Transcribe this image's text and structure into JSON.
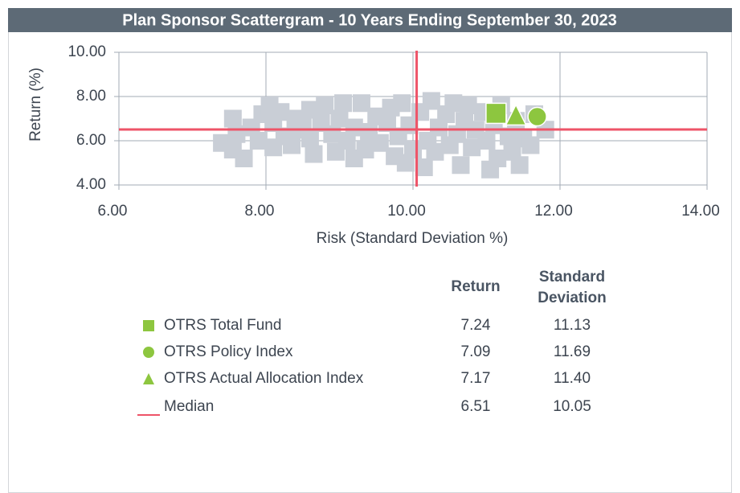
{
  "chart_data": {
    "type": "scatter",
    "title": "Plan Sponsor Scattergram - 10 Years Ending September 30, 2023",
    "x_label": "Risk (Standard Deviation %)",
    "y_label": "Return (%)",
    "xlim": [
      6,
      14
    ],
    "ylim": [
      4,
      10
    ],
    "xticks": [
      {
        "value": 6,
        "label": "6.00"
      },
      {
        "value": 8,
        "label": "8.00"
      },
      {
        "value": 10,
        "label": "10.00"
      },
      {
        "value": 12,
        "label": "12.00"
      },
      {
        "value": 14,
        "label": "14.00"
      }
    ],
    "yticks": [
      {
        "value": 4,
        "label": "4.00"
      },
      {
        "value": 6,
        "label": "6.00"
      },
      {
        "value": 8,
        "label": "8.00"
      },
      {
        "value": 10,
        "label": "10.00"
      }
    ],
    "grid": true,
    "table_headers": [
      "Return",
      "Standard Deviation"
    ],
    "series": [
      {
        "color": "#c9ced6",
        "marker": "square",
        "x": [
          7.4,
          7.55,
          7.55,
          7.6,
          7.8,
          7.9,
          7.95,
          8.05,
          8.1,
          8.1,
          8.2,
          8.25,
          8.35,
          8.4,
          8.45,
          8.6,
          8.6,
          8.65,
          8.75,
          8.8,
          8.9,
          8.95,
          9.0,
          9.05,
          9.1,
          9.2,
          9.3,
          9.35,
          9.4,
          9.5,
          9.55,
          9.65,
          9.7,
          9.75,
          9.8,
          9.85,
          9.9,
          9.95,
          10.0,
          10.1,
          10.2,
          10.25,
          10.3,
          10.35,
          10.45,
          10.5,
          10.55,
          10.6,
          10.65,
          10.7,
          10.75,
          10.8,
          10.85,
          10.95,
          11.0,
          11.05,
          11.1,
          11.15,
          11.2,
          11.3,
          11.35,
          11.4,
          11.45,
          11.5,
          11.6,
          11.65,
          11.8,
          7.7,
          8.5,
          9.2,
          10.15
        ],
        "values": [
          5.9,
          5.6,
          7.0,
          6.3,
          6.6,
          6.0,
          7.2,
          7.6,
          6.8,
          5.7,
          7.3,
          6.2,
          5.8,
          7.0,
          6.5,
          7.4,
          6.1,
          5.4,
          6.8,
          7.6,
          6.3,
          5.5,
          7.0,
          7.7,
          6.0,
          6.6,
          7.7,
          5.6,
          6.4,
          7.1,
          5.9,
          6.8,
          7.5,
          5.3,
          6.2,
          7.7,
          5.0,
          6.7,
          5.6,
          7.3,
          6.0,
          7.8,
          5.5,
          6.6,
          7.2,
          5.8,
          7.7,
          6.3,
          4.9,
          6.9,
          7.6,
          5.7,
          6.5,
          7.3,
          6.0,
          4.7,
          6.7,
          5.2,
          7.6,
          6.2,
          5.5,
          6.9,
          4.9,
          6.1,
          5.8,
          7.2,
          6.5,
          5.2,
          6.9,
          5.2,
          4.8
        ]
      },
      {
        "name": "OTRS Total Fund",
        "color": "#8dc63f",
        "marker": "square",
        "x": [
          11.13
        ],
        "x_labels": [
          "11.13"
        ],
        "values": [
          7.24
        ],
        "value_labels": [
          "7.24"
        ]
      },
      {
        "name": "OTRS Policy Index",
        "color": "#8dc63f",
        "marker": "circle",
        "x": [
          11.69
        ],
        "x_labels": [
          "11.69"
        ],
        "values": [
          7.09
        ],
        "value_labels": [
          "7.09"
        ]
      },
      {
        "name": "OTRS Actual Allocation Index",
        "color": "#8dc63f",
        "marker": "triangle",
        "x": [
          11.4
        ],
        "x_labels": [
          "11.40"
        ],
        "values": [
          7.17
        ],
        "value_labels": [
          "7.17"
        ]
      },
      {
        "name": "Median",
        "color": "#ee5468",
        "marker": "line",
        "x": [
          10.05
        ],
        "x_labels": [
          "10.05"
        ],
        "values": [
          6.51
        ],
        "value_labels": [
          "6.51"
        ]
      }
    ]
  }
}
